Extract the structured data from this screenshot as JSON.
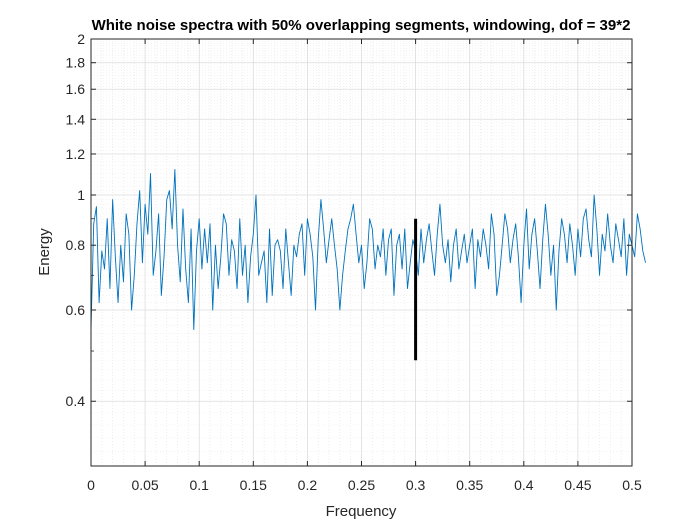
{
  "chart_data": {
    "type": "line",
    "title": "White noise spectra with 50% overlapping segments, windowing, dof = 39*2",
    "xlabel": "Frequency",
    "ylabel": "Energy",
    "xlim": [
      0,
      0.5
    ],
    "ylim": [
      0.3,
      2.0
    ],
    "yscale": "log",
    "grid": true,
    "minor_grid": true,
    "x_ticks": [
      0,
      0.05,
      0.1,
      0.15,
      0.2,
      0.25,
      0.3,
      0.35,
      0.4,
      0.45,
      0.5
    ],
    "x_tick_labels": [
      "0",
      "0.05",
      "0.1",
      "0.15",
      "0.2",
      "0.25",
      "0.3",
      "0.35",
      "0.4",
      "0.45",
      "0.5"
    ],
    "y_ticks": [
      0.4,
      0.6,
      0.8,
      1.0,
      1.2,
      1.4,
      1.6,
      1.8,
      2.0
    ],
    "y_tick_labels": [
      "0.4",
      "0.6",
      "0.8",
      "1",
      "1.2",
      "1.4",
      "1.6",
      "1.8",
      "2"
    ],
    "y_minor_ticks": [
      0.3,
      0.5,
      0.7,
      0.9
    ],
    "series": [
      {
        "color": "#0072BD",
        "x_start": 0,
        "x_step": 0.0025,
        "values": [
          0.55,
          0.88,
          0.95,
          0.62,
          0.78,
          0.72,
          0.9,
          0.66,
          0.98,
          0.76,
          0.62,
          0.8,
          0.68,
          0.92,
          0.84,
          0.6,
          0.7,
          0.88,
          1.02,
          0.74,
          0.96,
          0.84,
          1.1,
          0.7,
          0.78,
          0.92,
          0.64,
          0.76,
          0.98,
          1.02,
          0.86,
          1.12,
          0.8,
          0.68,
          0.94,
          0.72,
          0.62,
          0.86,
          0.55,
          0.78,
          0.9,
          0.72,
          0.86,
          0.74,
          0.88,
          0.6,
          0.8,
          0.66,
          0.76,
          0.92,
          0.88,
          0.7,
          0.82,
          0.78,
          0.66,
          0.9,
          0.7,
          0.8,
          0.62,
          0.76,
          0.84,
          1.0,
          0.7,
          0.74,
          0.78,
          0.62,
          0.86,
          0.64,
          0.8,
          0.82,
          0.78,
          0.66,
          0.86,
          0.74,
          0.64,
          0.8,
          0.76,
          0.84,
          0.88,
          0.7,
          0.9,
          0.84,
          0.76,
          0.6,
          0.82,
          0.98,
          0.86,
          0.74,
          0.82,
          0.9,
          0.8,
          0.72,
          0.6,
          0.7,
          0.78,
          0.86,
          0.9,
          0.96,
          0.84,
          0.74,
          0.8,
          0.66,
          0.74,
          0.9,
          0.86,
          0.72,
          0.8,
          0.76,
          0.86,
          0.7,
          0.82,
          0.86,
          0.64,
          0.8,
          0.84,
          0.72,
          0.86,
          0.66,
          0.74,
          0.82,
          0.78,
          0.7,
          0.86,
          0.74,
          0.82,
          0.88,
          0.78,
          0.7,
          0.84,
          0.96,
          0.8,
          0.74,
          0.82,
          0.68,
          0.8,
          0.86,
          0.72,
          0.78,
          0.84,
          0.74,
          0.8,
          0.86,
          0.66,
          0.82,
          0.76,
          0.86,
          0.8,
          0.72,
          0.92,
          0.84,
          0.64,
          0.7,
          0.8,
          0.92,
          0.86,
          0.74,
          0.82,
          0.88,
          0.76,
          0.62,
          0.8,
          0.94,
          0.72,
          0.84,
          0.9,
          0.78,
          0.66,
          0.82,
          0.96,
          0.84,
          0.7,
          0.8,
          0.6,
          0.78,
          0.9,
          0.84,
          0.74,
          0.88,
          0.8,
          0.7,
          0.86,
          0.76,
          0.9,
          0.94,
          0.82,
          0.76,
          1.0,
          0.86,
          0.7,
          0.84,
          0.78,
          0.92,
          0.8,
          0.74,
          0.88,
          0.82,
          0.76,
          0.9,
          0.7,
          0.84,
          0.8,
          0.76,
          0.92,
          0.86,
          0.78,
          0.74
        ]
      }
    ],
    "annotations": [
      {
        "type": "vertical-bar",
        "color": "#000000",
        "x": 0.3,
        "y_low": 0.48,
        "y_high": 0.9
      }
    ]
  }
}
